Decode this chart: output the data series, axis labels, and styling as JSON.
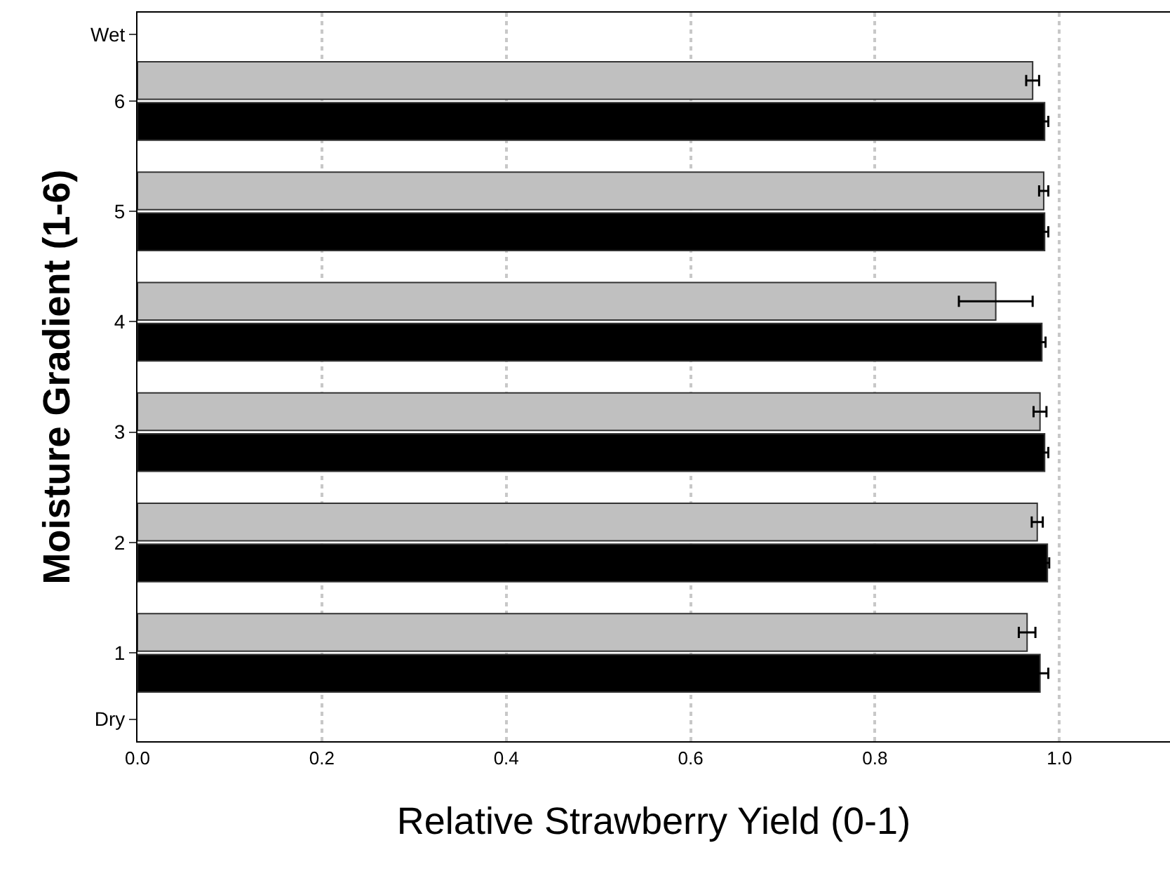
{
  "chart_data": {
    "type": "bar",
    "orientation": "horizontal",
    "xlabel": "Relative Strawberry Yield (0-1)",
    "ylabel": "Moisture Gradient (1-6)",
    "x": [
      1,
      2,
      3,
      4,
      5,
      6
    ],
    "series": [
      {
        "color": "#000000",
        "values": [
          0.979,
          0.987,
          0.984,
          0.981,
          0.984,
          0.984
        ],
        "errors": [
          0.009,
          0.002,
          0.004,
          0.004,
          0.004,
          0.004
        ]
      },
      {
        "color": "#c0c0c0",
        "values": [
          0.965,
          0.976,
          0.979,
          0.931,
          0.983,
          0.971
        ],
        "errors": [
          0.009,
          0.006,
          0.007,
          0.04,
          0.005,
          0.007
        ]
      }
    ],
    "xlim": [
      0,
      1.12
    ],
    "xticks": [
      {
        "value": 0,
        "label": "0.0"
      },
      {
        "value": 0.2,
        "label": "0.2"
      },
      {
        "value": 0.4,
        "label": "0.4"
      },
      {
        "value": 0.6,
        "label": "0.6"
      },
      {
        "value": 0.8,
        "label": "0.8"
      },
      {
        "value": 1,
        "label": "1.0"
      }
    ],
    "ylim": [
      0.2,
      6.8
    ],
    "yticks": [
      {
        "value": 0.4,
        "label": "Dry"
      },
      1,
      2,
      3,
      4,
      5,
      6,
      {
        "value": 6.6,
        "label": "Wet"
      }
    ],
    "grid": "x"
  }
}
